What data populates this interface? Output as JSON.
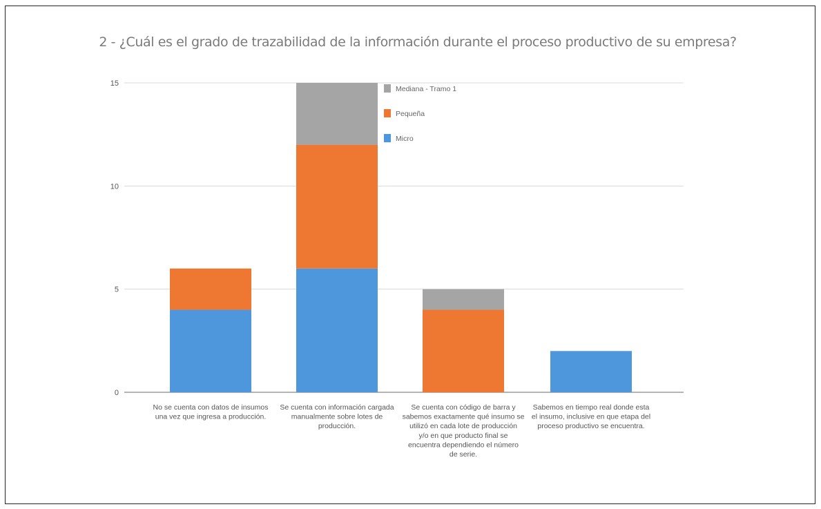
{
  "chart_data": {
    "type": "bar",
    "stacked": true,
    "title": "2 - ¿Cuál es el grado de trazabilidad de la información durante el proceso productivo de su empresa?",
    "xlabel": "",
    "ylabel": "",
    "ylim": [
      0,
      15
    ],
    "yticks": [
      "0",
      "5",
      "10",
      "15"
    ],
    "grid": true,
    "legend_position": "top-center",
    "categories": [
      [
        "No se cuenta con datos de insumos",
        "una vez que ingresa a producción."
      ],
      [
        "Se cuenta con información cargada",
        "manualmente sobre lotes de",
        "producción."
      ],
      [
        "Se cuenta con código de barra y",
        "sabemos exactamente qué insumo se",
        "utilizó en cada lote de producción",
        "y/o en que producto final se",
        "encuentra dependiendo el número",
        "de serie."
      ],
      [
        "Sabemos en tiempo real donde esta",
        "el insumo, inclusive en que etapa del",
        "proceso productivo se encuentra."
      ]
    ],
    "series": [
      {
        "name": "Micro",
        "color": "#4f97dc",
        "values": [
          4,
          6,
          0,
          2
        ]
      },
      {
        "name": "Pequeña",
        "color": "#ee7731",
        "values": [
          2,
          6,
          4,
          0
        ]
      },
      {
        "name": "Mediana - Tramo 1",
        "color": "#a5a5a5",
        "values": [
          0,
          3,
          1,
          0
        ]
      }
    ]
  }
}
